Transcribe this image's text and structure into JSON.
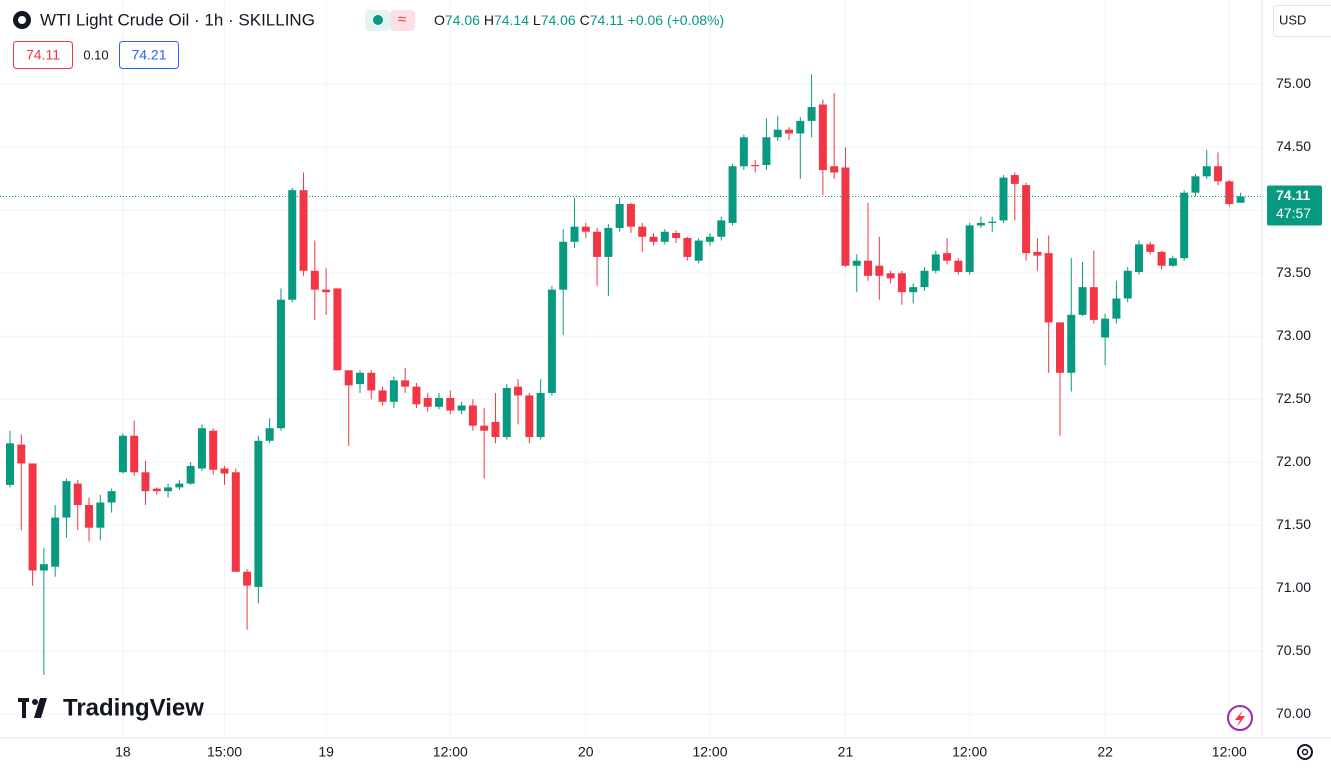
{
  "chart_data": {
    "type": "candlestick",
    "title": "WTI Light Crude Oil · 1h · SKILLING",
    "legend": {
      "open_label": "O",
      "open": 74.06,
      "high_label": "H",
      "high": 74.14,
      "low_label": "L",
      "low": 74.06,
      "close_label": "C",
      "close": 74.11,
      "change": "+0.06",
      "change_pct": "(+0.08%)"
    },
    "bid": "74.11",
    "spread": "0.10",
    "ask": "74.21",
    "currency": "USD",
    "last_price": {
      "value": 74.11,
      "label": "74.11"
    },
    "countdown": "47:57",
    "brand": "TradingView",
    "up_color": "#089981",
    "down_color": "#f23645",
    "grid": true,
    "categories": [
      null,
      null,
      null,
      null,
      null,
      null,
      null,
      null,
      null,
      null,
      "18",
      null,
      null,
      null,
      null,
      null,
      null,
      null,
      null,
      "15:00",
      null,
      null,
      null,
      null,
      null,
      null,
      null,
      null,
      "19",
      null,
      null,
      null,
      null,
      null,
      null,
      null,
      null,
      null,
      null,
      "12:00",
      null,
      null,
      null,
      null,
      null,
      null,
      null,
      null,
      null,
      null,
      null,
      "20",
      null,
      null,
      null,
      null,
      null,
      null,
      null,
      null,
      null,
      null,
      "12:00",
      null,
      null,
      null,
      null,
      null,
      null,
      null,
      null,
      null,
      null,
      null,
      "21",
      null,
      null,
      null,
      null,
      null,
      null,
      null,
      null,
      null,
      null,
      "12:00",
      null,
      null,
      null,
      null,
      null,
      null,
      null,
      null,
      null,
      null,
      null,
      "22",
      null,
      null,
      null,
      null,
      null,
      null,
      null,
      null,
      null,
      null,
      "12:00",
      null
    ],
    "open": [
      71.82,
      72.14,
      71.99,
      71.14,
      71.17,
      71.56,
      71.83,
      71.66,
      71.48,
      71.68,
      71.92,
      72.21,
      71.92,
      71.79,
      71.77,
      71.8,
      71.83,
      71.95,
      72.25,
      71.95,
      71.92,
      71.13,
      71.01,
      72.17,
      72.27,
      73.29,
      74.16,
      73.52,
      73.37,
      73.38,
      72.73,
      72.62,
      72.71,
      72.57,
      72.48,
      72.65,
      72.6,
      72.51,
      72.44,
      72.51,
      72.41,
      72.45,
      72.29,
      72.32,
      72.2,
      72.6,
      72.53,
      72.2,
      72.55,
      73.37,
      73.75,
      73.87,
      73.83,
      73.63,
      73.86,
      74.05,
      73.87,
      73.79,
      73.75,
      73.82,
      73.78,
      73.6,
      73.75,
      73.79,
      73.9,
      74.35,
      74.36,
      74.36,
      74.58,
      74.64,
      74.61,
      74.71,
      74.84,
      74.35,
      74.34,
      73.56,
      73.6,
      73.56,
      73.5,
      73.5,
      73.35,
      73.39,
      73.52,
      73.66,
      73.6,
      73.51,
      73.88,
      73.9,
      73.92,
      74.28,
      74.2,
      73.67,
      73.66,
      73.11,
      72.71,
      73.17,
      73.39,
      72.99,
      73.14,
      73.3,
      73.51,
      73.73,
      73.67,
      73.56,
      73.62,
      74.14,
      74.27,
      74.35,
      74.23,
      74.06
    ],
    "high": [
      72.25,
      72.22,
      71.99,
      71.32,
      71.66,
      71.87,
      71.86,
      71.72,
      71.74,
      71.79,
      72.23,
      72.33,
      72.01,
      71.8,
      71.83,
      71.86,
      72.0,
      72.3,
      72.27,
      71.97,
      71.95,
      71.15,
      72.21,
      72.35,
      73.38,
      74.18,
      74.3,
      73.76,
      73.54,
      73.38,
      72.73,
      72.73,
      72.73,
      72.6,
      72.68,
      72.75,
      72.63,
      72.55,
      72.55,
      72.57,
      72.48,
      72.5,
      72.43,
      72.55,
      72.62,
      72.66,
      72.55,
      72.66,
      73.4,
      73.85,
      74.1,
      73.9,
      73.86,
      73.89,
      74.1,
      74.06,
      73.9,
      73.82,
      73.85,
      73.84,
      73.79,
      73.78,
      73.82,
      73.95,
      74.37,
      74.6,
      74.4,
      74.73,
      74.75,
      74.66,
      74.74,
      75.08,
      74.88,
      74.93,
      74.5,
      73.65,
      74.06,
      73.79,
      73.52,
      73.52,
      73.42,
      73.55,
      73.68,
      73.78,
      73.62,
      73.9,
      73.95,
      73.95,
      74.28,
      74.3,
      74.22,
      73.78,
      73.8,
      73.11,
      73.62,
      73.59,
      73.68,
      73.18,
      73.44,
      73.55,
      73.76,
      73.75,
      73.68,
      73.64,
      74.16,
      74.29,
      74.48,
      74.46,
      74.24,
      74.14
    ],
    "low": [
      71.8,
      71.46,
      71.02,
      70.31,
      71.09,
      71.4,
      71.46,
      71.37,
      71.38,
      71.6,
      71.91,
      71.89,
      71.66,
      71.74,
      71.72,
      71.78,
      71.82,
      71.93,
      71.9,
      71.82,
      71.13,
      70.67,
      70.88,
      72.15,
      72.25,
      73.27,
      73.48,
      73.13,
      73.17,
      72.73,
      72.13,
      72.55,
      72.5,
      72.45,
      72.43,
      72.55,
      72.43,
      72.4,
      72.42,
      72.38,
      72.38,
      72.25,
      71.87,
      72.15,
      72.18,
      72.3,
      72.15,
      72.18,
      72.53,
      73.01,
      73.7,
      73.78,
      73.4,
      73.32,
      73.83,
      73.82,
      73.67,
      73.72,
      73.73,
      73.74,
      73.6,
      73.58,
      73.72,
      73.76,
      73.88,
      74.32,
      74.3,
      74.32,
      74.55,
      74.56,
      74.25,
      74.58,
      74.12,
      74.25,
      73.55,
      73.35,
      73.44,
      73.29,
      73.42,
      73.25,
      73.26,
      73.36,
      73.5,
      73.57,
      73.49,
      73.49,
      73.86,
      73.83,
      73.9,
      73.92,
      73.6,
      73.52,
      72.71,
      72.21,
      72.56,
      73.16,
      73.1,
      72.77,
      73.1,
      73.27,
      73.49,
      73.65,
      73.53,
      73.55,
      73.6,
      74.11,
      74.25,
      74.2,
      74.03,
      74.06
    ],
    "close": [
      72.15,
      71.99,
      71.14,
      71.19,
      71.56,
      71.85,
      71.66,
      71.48,
      71.68,
      71.77,
      72.21,
      71.92,
      71.77,
      71.77,
      71.8,
      71.83,
      71.97,
      72.27,
      71.94,
      71.91,
      71.13,
      71.02,
      72.17,
      72.27,
      73.29,
      74.16,
      73.52,
      73.37,
      73.35,
      72.73,
      72.61,
      72.71,
      72.57,
      72.48,
      72.65,
      72.6,
      72.46,
      72.44,
      72.51,
      72.41,
      72.45,
      72.29,
      72.25,
      72.2,
      72.59,
      72.53,
      72.2,
      72.55,
      73.37,
      73.75,
      73.87,
      73.83,
      73.63,
      73.86,
      74.05,
      73.87,
      73.79,
      73.75,
      73.83,
      73.78,
      73.63,
      73.76,
      73.79,
      73.92,
      74.35,
      74.58,
      74.35,
      74.58,
      74.64,
      74.61,
      74.71,
      74.82,
      74.32,
      74.3,
      73.56,
      73.6,
      73.48,
      73.48,
      73.46,
      73.35,
      73.39,
      73.52,
      73.65,
      73.6,
      73.51,
      73.88,
      73.9,
      73.91,
      74.26,
      74.21,
      73.66,
      73.64,
      73.11,
      72.71,
      73.17,
      73.39,
      73.13,
      73.14,
      73.3,
      73.52,
      73.73,
      73.67,
      73.56,
      73.62,
      74.14,
      74.27,
      74.35,
      74.23,
      74.05,
      74.11
    ],
    "ylim": [
      69.81,
      75.67
    ],
    "yticks": [
      {
        "value": 70,
        "label": "70.00"
      },
      {
        "value": 70.5,
        "label": "70.50"
      },
      {
        "value": 71,
        "label": "71.00"
      },
      {
        "value": 71.5,
        "label": "71.50"
      },
      {
        "value": 72,
        "label": "72.00"
      },
      {
        "value": 72.5,
        "label": "72.50"
      },
      {
        "value": 73,
        "label": "73.00"
      },
      {
        "value": 73.5,
        "label": "73.50"
      },
      {
        "value": 74,
        "label": "74.00"
      },
      {
        "value": 74.5,
        "label": "74.50"
      },
      {
        "value": 75,
        "label": "75.00"
      }
    ]
  }
}
